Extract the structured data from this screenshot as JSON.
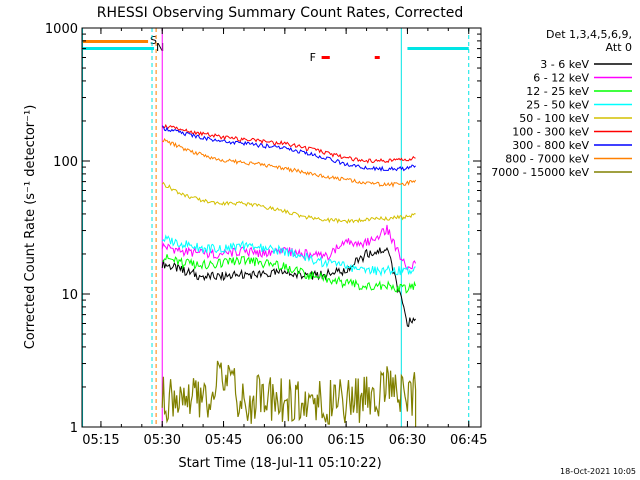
{
  "chart_data": {
    "type": "line",
    "title": "RHESSI Observing Summary Count Rates, Corrected",
    "xlabel": "Start Time (18-Jul-11 05:10:22)",
    "ylabel": "Corrected Count Rate (s⁻¹ detector⁻¹)",
    "y_scale": "log",
    "ylim": [
      1,
      1000
    ],
    "xlim": [
      "05:10:22",
      "06:48:00"
    ],
    "x_ticks": [
      "05:15",
      "05:30",
      "05:45",
      "06:00",
      "06:15",
      "06:30",
      "06:45"
    ],
    "y_ticks": [
      "1",
      "10",
      "100",
      "1000"
    ],
    "grid": false,
    "legend_position": "right-outside",
    "legend_header": [
      "Det 1,3,4,5,6,9,",
      "Att 0"
    ],
    "footer_date": "18-Oct-2021 10:05",
    "markers": {
      "saa_label": "S",
      "night_label": "N",
      "flare_label": "F",
      "saa_color": "#ff8000",
      "night_color": "#00e5e5",
      "flare_color": "#ff0000",
      "saa_bar": [
        "05:10:22",
        "05:28:00"
      ],
      "night_bars": [
        [
          "05:10:22",
          "05:28:00"
        ],
        [
          "06:30:00",
          "06:45:00"
        ]
      ],
      "flare_bars": [
        [
          "06:09:00",
          "06:11:00"
        ],
        [
          "06:22:00",
          "06:23:00"
        ]
      ],
      "vlines": [
        {
          "t": "05:10:30",
          "color": "#00e5e5",
          "style": "solid"
        },
        {
          "t": "05:27:30",
          "color": "#00e5e5",
          "style": "dashed"
        },
        {
          "t": "05:28:30",
          "color": "#ff8000",
          "style": "dashed"
        },
        {
          "t": "05:30:00",
          "color": "#ff00ff",
          "style": "solid"
        },
        {
          "t": "06:28:30",
          "color": "#00e5e5",
          "style": "solid"
        },
        {
          "t": "06:45:00",
          "color": "#00e5e5",
          "style": "dashed"
        }
      ]
    },
    "x": [
      "05:30",
      "05:35",
      "05:40",
      "05:45",
      "05:50",
      "05:55",
      "06:00",
      "06:05",
      "06:10",
      "06:15",
      "06:20",
      "06:25",
      "06:30",
      "06:32"
    ],
    "series": [
      {
        "name": "3 - 6 keV",
        "color": "#000000",
        "values": [
          17,
          15,
          13.5,
          13.5,
          14,
          14,
          14.5,
          13.5,
          14,
          15,
          20,
          22,
          6,
          6.5
        ]
      },
      {
        "name": "6 - 12 keV",
        "color": "#ff00ff",
        "values": [
          23,
          21,
          20,
          20,
          21,
          20,
          21,
          20,
          19,
          25,
          24,
          31,
          15,
          17
        ]
      },
      {
        "name": "12 - 25 keV",
        "color": "#00ff00",
        "values": [
          19,
          17,
          16.5,
          17,
          18,
          17,
          16,
          14,
          13,
          12,
          11.5,
          11.5,
          11,
          11.5
        ]
      },
      {
        "name": "25 - 50 keV",
        "color": "#00ffff",
        "values": [
          26,
          24,
          22,
          22,
          23,
          22,
          21,
          19,
          17,
          16,
          15,
          15,
          15,
          16
        ]
      },
      {
        "name": "50 - 100 keV",
        "color": "#d4c000",
        "values": [
          68,
          56,
          50,
          48,
          48,
          45,
          42,
          38,
          36,
          35,
          36,
          37,
          38,
          40
        ]
      },
      {
        "name": "100 - 300 keV",
        "color": "#ff0000",
        "values": [
          185,
          170,
          160,
          150,
          145,
          140,
          135,
          125,
          115,
          105,
          100,
          100,
          102,
          105
        ]
      },
      {
        "name": "300 - 800 keV",
        "color": "#0000ff",
        "values": [
          178,
          162,
          150,
          140,
          135,
          130,
          125,
          115,
          105,
          95,
          88,
          87,
          88,
          92
        ]
      },
      {
        "name": "800 - 7000 keV",
        "color": "#ff8000",
        "values": [
          145,
          125,
          110,
          100,
          98,
          93,
          88,
          82,
          76,
          72,
          68,
          66,
          68,
          72
        ]
      },
      {
        "name": "7000 - 15000 keV",
        "color": "#808000",
        "values": [
          1.6,
          1.8,
          1.5,
          2.4,
          1.5,
          1.7,
          1.6,
          1.5,
          1.6,
          1.5,
          1.6,
          1.9,
          1.7,
          1.9
        ]
      }
    ]
  }
}
